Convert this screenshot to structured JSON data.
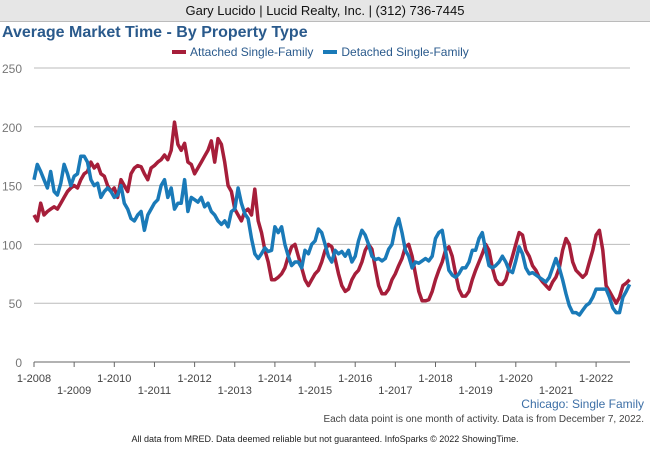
{
  "header": {
    "text": "Gary Lucido | Lucid Realty, Inc. | (312) 736-7445"
  },
  "chart_data": {
    "type": "line",
    "title": "Average Market Time - By Property Type",
    "xlabel": "",
    "ylabel": "",
    "ylim": [
      0,
      250
    ],
    "yticks": [
      "0",
      "50",
      "100",
      "150",
      "200",
      "250"
    ],
    "xticks": [
      "1-2008",
      "1-2009",
      "1-2010",
      "1-2011",
      "1-2012",
      "1-2013",
      "1-2014",
      "1-2015",
      "1-2016",
      "1-2017",
      "1-2018",
      "1-2019",
      "1-2020",
      "1-2021",
      "1-2022"
    ],
    "x_start": "2008-01",
    "x_end": "2022-11",
    "x_step": "month",
    "grid": true,
    "legend": "top",
    "series": [
      {
        "name": "Attached Single-Family",
        "color": "#a61e3a",
        "values": [
          125,
          120,
          135,
          125,
          128,
          130,
          132,
          130,
          135,
          140,
          145,
          148,
          150,
          148,
          155,
          160,
          162,
          170,
          165,
          168,
          160,
          158,
          150,
          145,
          148,
          140,
          155,
          150,
          145,
          160,
          165,
          167,
          166,
          160,
          155,
          165,
          167,
          170,
          172,
          176,
          172,
          180,
          204,
          185,
          180,
          186,
          170,
          168,
          160,
          165,
          170,
          175,
          180,
          188,
          170,
          190,
          185,
          170,
          150,
          145,
          130,
          125,
          120,
          128,
          130,
          125,
          147,
          120,
          110,
          95,
          85,
          70,
          70,
          72,
          75,
          80,
          90,
          98,
          100,
          90,
          80,
          70,
          65,
          70,
          75,
          78,
          85,
          95,
          100,
          98,
          88,
          75,
          65,
          60,
          62,
          70,
          75,
          78,
          85,
          95,
          100,
          96,
          80,
          65,
          58,
          58,
          62,
          70,
          75,
          82,
          88,
          98,
          100,
          90,
          75,
          60,
          52,
          52,
          53,
          60,
          70,
          78,
          85,
          95,
          98,
          90,
          75,
          62,
          56,
          56,
          60,
          70,
          78,
          85,
          92,
          100,
          95,
          80,
          70,
          66,
          66,
          70,
          80,
          90,
          100,
          110,
          108,
          95,
          90,
          82,
          78,
          72,
          68,
          65,
          62,
          68,
          72,
          80,
          95,
          105,
          100,
          85,
          78,
          75,
          72,
          75,
          85,
          95,
          108,
          112,
          95,
          65,
          60,
          55,
          50,
          55,
          65,
          67,
          70
        ]
      },
      {
        "name": "Detached Single-Family",
        "color": "#1a7ab8",
        "values": [
          155,
          168,
          162,
          155,
          148,
          162,
          145,
          142,
          152,
          168,
          160,
          150,
          158,
          160,
          175,
          175,
          170,
          155,
          150,
          152,
          140,
          145,
          148,
          145,
          140,
          142,
          150,
          135,
          130,
          122,
          120,
          125,
          128,
          112,
          125,
          130,
          135,
          138,
          150,
          155,
          140,
          148,
          130,
          135,
          135,
          155,
          128,
          140,
          138,
          136,
          140,
          132,
          135,
          128,
          125,
          120,
          117,
          120,
          115,
          128,
          130,
          148,
          135,
          126,
          122,
          105,
          92,
          88,
          92,
          97,
          94,
          95,
          115,
          110,
          115,
          100,
          90,
          82,
          85,
          85,
          80,
          95,
          92,
          100,
          103,
          113,
          110,
          100,
          90,
          85,
          95,
          92,
          94,
          90,
          95,
          85,
          90,
          103,
          112,
          108,
          100,
          90,
          87,
          88,
          86,
          88,
          96,
          100,
          114,
          122,
          110,
          95,
          90,
          80,
          85,
          84,
          86,
          88,
          86,
          90,
          105,
          110,
          112,
          95,
          78,
          74,
          72,
          75,
          80,
          80,
          85,
          95,
          95,
          105,
          110,
          95,
          82,
          80,
          82,
          85,
          90,
          85,
          78,
          76,
          86,
          98,
          92,
          80,
          75,
          76,
          74,
          72,
          70,
          68,
          72,
          80,
          88,
          80,
          70,
          58,
          48,
          42,
          42,
          40,
          44,
          48,
          50,
          55,
          62,
          62,
          62,
          62,
          55,
          46,
          42,
          42,
          55,
          60,
          66
        ]
      }
    ]
  },
  "source_label": "Chicago: Single Family",
  "note": "Each data point is one month of activity. Data is from December 7, 2022.",
  "footer": "All data from MRED. Data deemed reliable but not guaranteed. InfoSparks © 2022 ShowingTime."
}
